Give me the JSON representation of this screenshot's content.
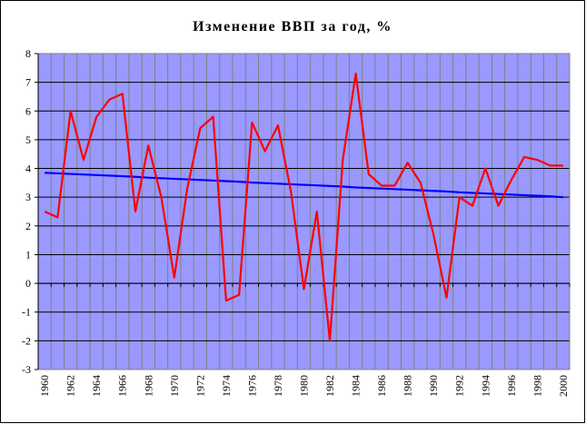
{
  "chart_data": {
    "type": "line",
    "title": "Изменение ВВП за год, %",
    "categories": [
      1960,
      null,
      1962,
      null,
      1964,
      null,
      1966,
      null,
      1968,
      null,
      1970,
      null,
      1972,
      null,
      1974,
      null,
      1976,
      null,
      1978,
      null,
      1980,
      null,
      1982,
      null,
      1984,
      null,
      1986,
      null,
      1988,
      null,
      1990,
      null,
      1992,
      null,
      1994,
      null,
      1996,
      null,
      1998,
      null,
      2000
    ],
    "series": [
      {
        "color": "#ff0000",
        "values": [
          2.5,
          2.3,
          6.0,
          4.3,
          5.8,
          6.4,
          6.6,
          2.5,
          4.8,
          3.0,
          0.2,
          3.3,
          5.4,
          5.8,
          -0.6,
          -0.4,
          5.6,
          4.6,
          5.5,
          3.2,
          -0.2,
          2.5,
          -2.0,
          4.3,
          7.3,
          3.8,
          3.4,
          3.4,
          4.2,
          3.5,
          1.7,
          -0.5,
          3.0,
          2.7,
          4.0,
          2.7,
          3.6,
          4.4,
          4.3,
          4.1,
          4.1
        ]
      },
      {
        "color": "#0000ff",
        "values": [
          3.85,
          3.83,
          3.81,
          3.79,
          3.77,
          3.75,
          3.73,
          3.71,
          3.68,
          3.66,
          3.64,
          3.62,
          3.6,
          3.58,
          3.56,
          3.54,
          3.51,
          3.49,
          3.47,
          3.45,
          3.43,
          3.41,
          3.39,
          3.37,
          3.34,
          3.32,
          3.3,
          3.28,
          3.26,
          3.24,
          3.22,
          3.2,
          3.17,
          3.15,
          3.13,
          3.11,
          3.09,
          3.07,
          3.05,
          3.03,
          3.0
        ]
      }
    ],
    "ylim": [
      -3,
      8
    ],
    "yticks": [
      -3,
      -2,
      -1,
      0,
      1,
      2,
      3,
      4,
      5,
      6,
      7,
      8
    ],
    "grid": true,
    "background": "#9999ff"
  }
}
